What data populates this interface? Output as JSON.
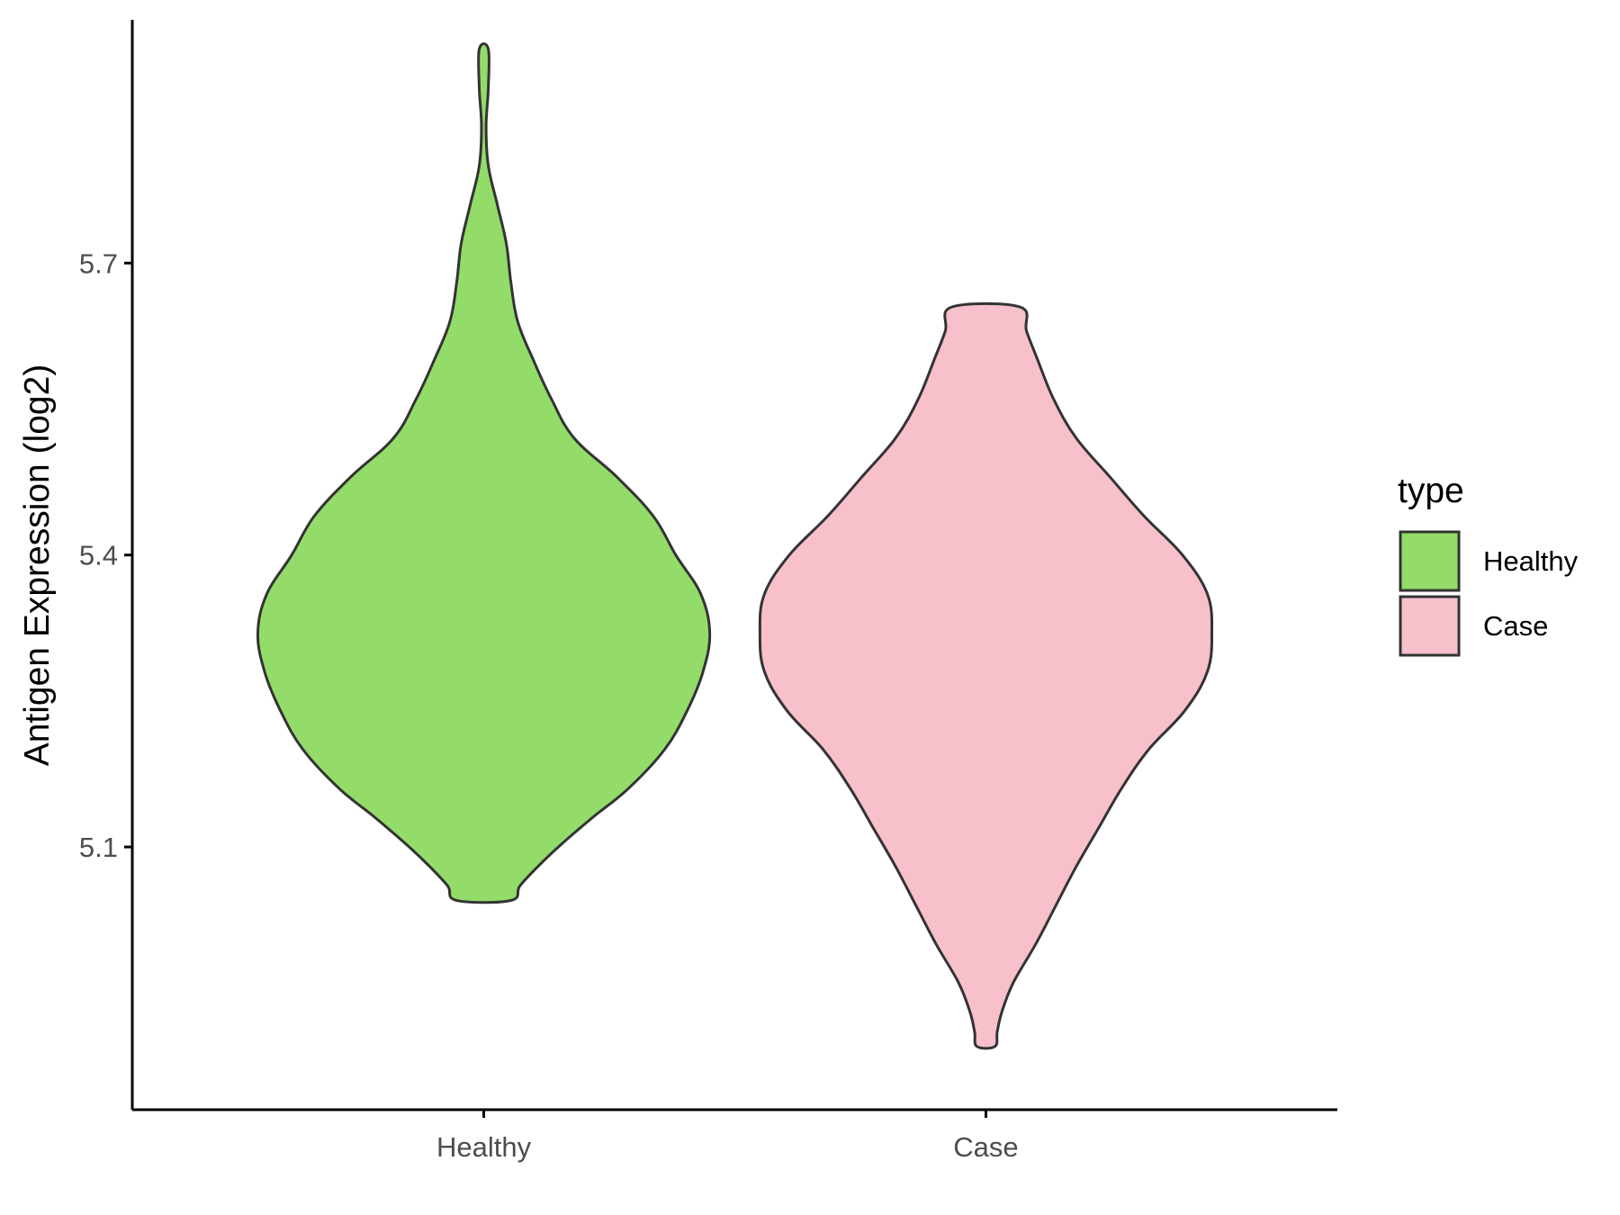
{
  "chart_data": {
    "type": "violin",
    "xlabel": "",
    "ylabel": "Antigen Expression (log2)",
    "ylim": [
      4.83,
      5.95
    ],
    "yticks": [
      "5.1",
      "5.4",
      "5.7"
    ],
    "categories": [
      "Healthy",
      "Case"
    ],
    "colors": {
      "Healthy": "#93dc6a",
      "Case": "#f7c0cb",
      "outline": "#333333",
      "axis": "#000000"
    },
    "series": [
      {
        "name": "Healthy",
        "min": 5.045,
        "max": 5.92,
        "density_profile": [
          [
            5.045,
            0.12
          ],
          [
            5.06,
            0.16
          ],
          [
            5.08,
            0.24
          ],
          [
            5.1,
            0.33
          ],
          [
            5.13,
            0.48
          ],
          [
            5.16,
            0.64
          ],
          [
            5.2,
            0.8
          ],
          [
            5.24,
            0.9
          ],
          [
            5.28,
            0.97
          ],
          [
            5.32,
            1.0
          ],
          [
            5.36,
            0.96
          ],
          [
            5.4,
            0.85
          ],
          [
            5.44,
            0.75
          ],
          [
            5.48,
            0.59
          ],
          [
            5.52,
            0.4
          ],
          [
            5.56,
            0.3
          ],
          [
            5.6,
            0.22
          ],
          [
            5.64,
            0.15
          ],
          [
            5.68,
            0.12
          ],
          [
            5.72,
            0.1
          ],
          [
            5.76,
            0.06
          ],
          [
            5.8,
            0.02
          ],
          [
            5.84,
            0.01
          ],
          [
            5.88,
            0.02
          ],
          [
            5.92,
            0.02
          ]
        ]
      },
      {
        "name": "Case",
        "min": 4.895,
        "max": 5.655,
        "density_profile": [
          [
            4.895,
            0.04
          ],
          [
            4.91,
            0.05
          ],
          [
            4.93,
            0.07
          ],
          [
            4.96,
            0.12
          ],
          [
            5.0,
            0.22
          ],
          [
            5.04,
            0.31
          ],
          [
            5.08,
            0.4
          ],
          [
            5.12,
            0.5
          ],
          [
            5.16,
            0.6
          ],
          [
            5.2,
            0.72
          ],
          [
            5.24,
            0.88
          ],
          [
            5.28,
            0.98
          ],
          [
            5.32,
            1.0
          ],
          [
            5.36,
            0.98
          ],
          [
            5.4,
            0.87
          ],
          [
            5.44,
            0.7
          ],
          [
            5.48,
            0.55
          ],
          [
            5.52,
            0.4
          ],
          [
            5.56,
            0.3
          ],
          [
            5.6,
            0.23
          ],
          [
            5.63,
            0.18
          ],
          [
            5.655,
            0.15
          ]
        ]
      }
    ],
    "legend": {
      "title": "type",
      "entries": [
        "Healthy",
        "Case"
      ],
      "position": "right"
    }
  }
}
